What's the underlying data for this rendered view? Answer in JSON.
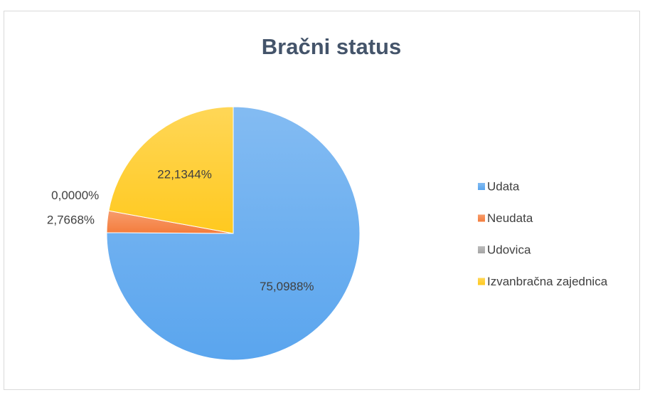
{
  "chart_data": {
    "type": "pie",
    "title": "Bračni status",
    "categories": [
      "Udata",
      "Neudata",
      "Udovica",
      "Izvanbračna zajednica"
    ],
    "values": [
      75.0988,
      2.7668,
      0,
      22.1344
    ],
    "value_labels": [
      "75,0988%",
      "2,7668%",
      "0,0000%",
      "22,1344%"
    ],
    "colors": [
      "#5aa5ee",
      "#f47c3c",
      "#a5a5a5",
      "#ffc91f"
    ],
    "legend": "right"
  }
}
